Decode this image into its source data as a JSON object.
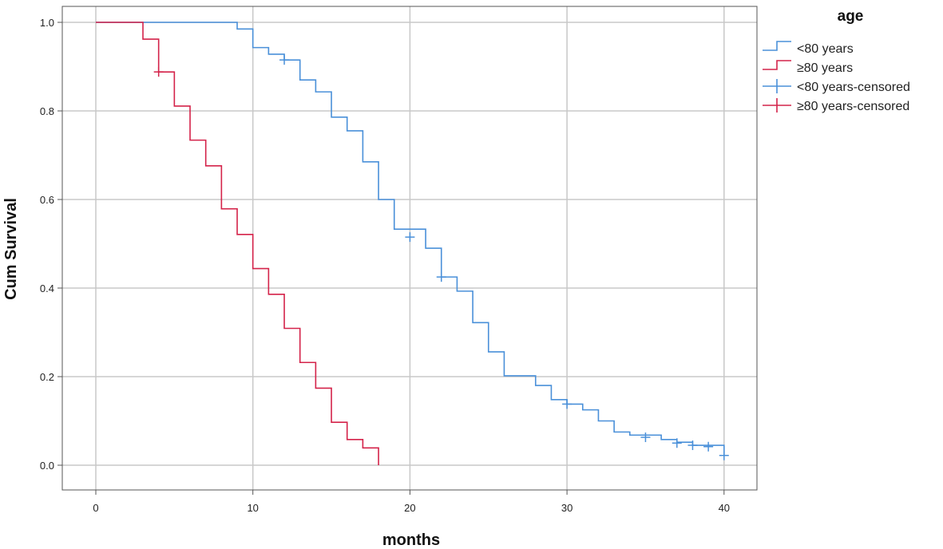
{
  "chart_data": {
    "type": "line",
    "subtype": "kaplan-meier-step",
    "title": "",
    "xlabel": "months",
    "ylabel": "Cum Survival",
    "xlim": [
      -2,
      42
    ],
    "ylim": [
      -0.05,
      1.02
    ],
    "xticks": [
      "0",
      "10",
      "20",
      "30",
      "40"
    ],
    "yticks": [
      "0.0",
      "0.2",
      "0.4",
      "0.6",
      "0.8",
      "1.0"
    ],
    "grid": true,
    "legend": {
      "title": "age",
      "placement": "right",
      "entries": [
        "<80 years",
        "≥80 years",
        "<80 years-censored",
        "≥80 years-censored"
      ]
    },
    "series": [
      {
        "name": "<80 years",
        "color": "#4a90d9",
        "steps": [
          [
            0,
            1.0
          ],
          [
            9,
            0.985
          ],
          [
            10,
            0.943
          ],
          [
            11,
            0.928
          ],
          [
            12,
            0.915
          ],
          [
            13,
            0.87
          ],
          [
            14,
            0.843
          ],
          [
            15,
            0.786
          ],
          [
            16,
            0.755
          ],
          [
            17,
            0.685
          ],
          [
            18,
            0.6
          ],
          [
            19,
            0.533
          ],
          [
            21,
            0.49
          ],
          [
            22,
            0.425
          ],
          [
            23,
            0.393
          ],
          [
            24,
            0.322
          ],
          [
            25,
            0.256
          ],
          [
            26,
            0.202
          ],
          [
            28,
            0.18
          ],
          [
            29,
            0.148
          ],
          [
            30,
            0.138
          ],
          [
            31,
            0.125
          ],
          [
            32,
            0.1
          ],
          [
            33,
            0.075
          ],
          [
            34,
            0.068
          ],
          [
            36,
            0.058
          ],
          [
            37,
            0.052
          ],
          [
            38,
            0.045
          ],
          [
            40,
            0.022
          ]
        ],
        "end_x": 40,
        "censored": [
          [
            12,
            0.915
          ],
          [
            20,
            0.515
          ],
          [
            22,
            0.425
          ],
          [
            30,
            0.138
          ],
          [
            35,
            0.063
          ],
          [
            37,
            0.05
          ],
          [
            38,
            0.045
          ],
          [
            39,
            0.042
          ],
          [
            40,
            0.022
          ]
        ]
      },
      {
        "name": "≥80 years",
        "color": "#d4234a",
        "steps": [
          [
            0,
            1.0
          ],
          [
            3,
            0.962
          ],
          [
            4,
            0.888
          ],
          [
            5,
            0.811
          ],
          [
            6,
            0.734
          ],
          [
            7,
            0.676
          ],
          [
            8,
            0.579
          ],
          [
            9,
            0.521
          ],
          [
            10,
            0.444
          ],
          [
            11,
            0.386
          ],
          [
            12,
            0.309
          ],
          [
            13,
            0.232
          ],
          [
            14,
            0.174
          ],
          [
            15,
            0.097
          ],
          [
            16,
            0.058
          ],
          [
            17,
            0.039
          ],
          [
            18,
            0.0
          ]
        ],
        "end_x": 18,
        "censored": [
          [
            4,
            0.888
          ]
        ]
      }
    ]
  }
}
